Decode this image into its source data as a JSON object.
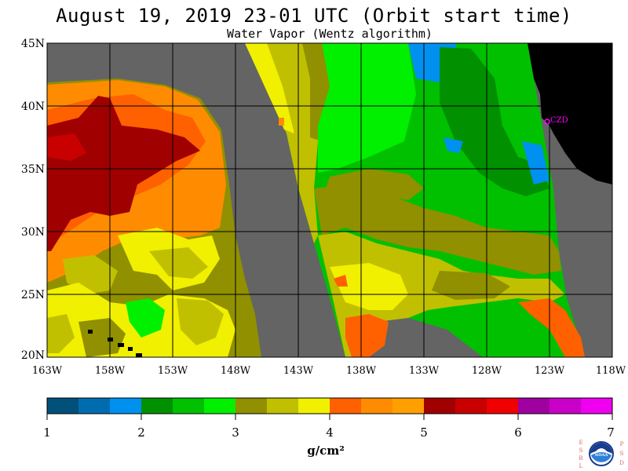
{
  "header": {
    "title": "August 19, 2019  23-01 UTC  (Orbit start time)",
    "subtitle": "Water Vapor (Wentz algorithm)"
  },
  "map": {
    "lat_labels": [
      "45N",
      "40N",
      "35N",
      "30N",
      "25N",
      "20N"
    ],
    "lon_labels": [
      "163W",
      "158W",
      "153W",
      "148W",
      "143W",
      "138W",
      "133W",
      "128W",
      "123W",
      "118W"
    ],
    "lat_range": [
      20,
      45
    ],
    "lon_range": [
      -163,
      -118
    ],
    "station_label": "CZD",
    "colors": {
      "no_data": "#646464",
      "land": "#000000",
      "station": "#ff00ff"
    }
  },
  "colorbar": {
    "ticks": [
      "1",
      "2",
      "3",
      "4",
      "5",
      "6",
      "7"
    ],
    "unit": "g/cm²",
    "colors": [
      "#00507a",
      "#006cb0",
      "#0090f0",
      "#009000",
      "#00c000",
      "#00f000",
      "#909000",
      "#c0c000",
      "#f0f000",
      "#ff6000",
      "#ff8c00",
      "#ffa000",
      "#a00000",
      "#c80000",
      "#f00000",
      "#a000a0",
      "#c800c8",
      "#f000f0"
    ]
  },
  "logo": {
    "left_letters": [
      "E",
      "S",
      "R",
      "L"
    ],
    "right_letters": [
      "P",
      "S",
      "D"
    ],
    "badge": "NOAA"
  }
}
